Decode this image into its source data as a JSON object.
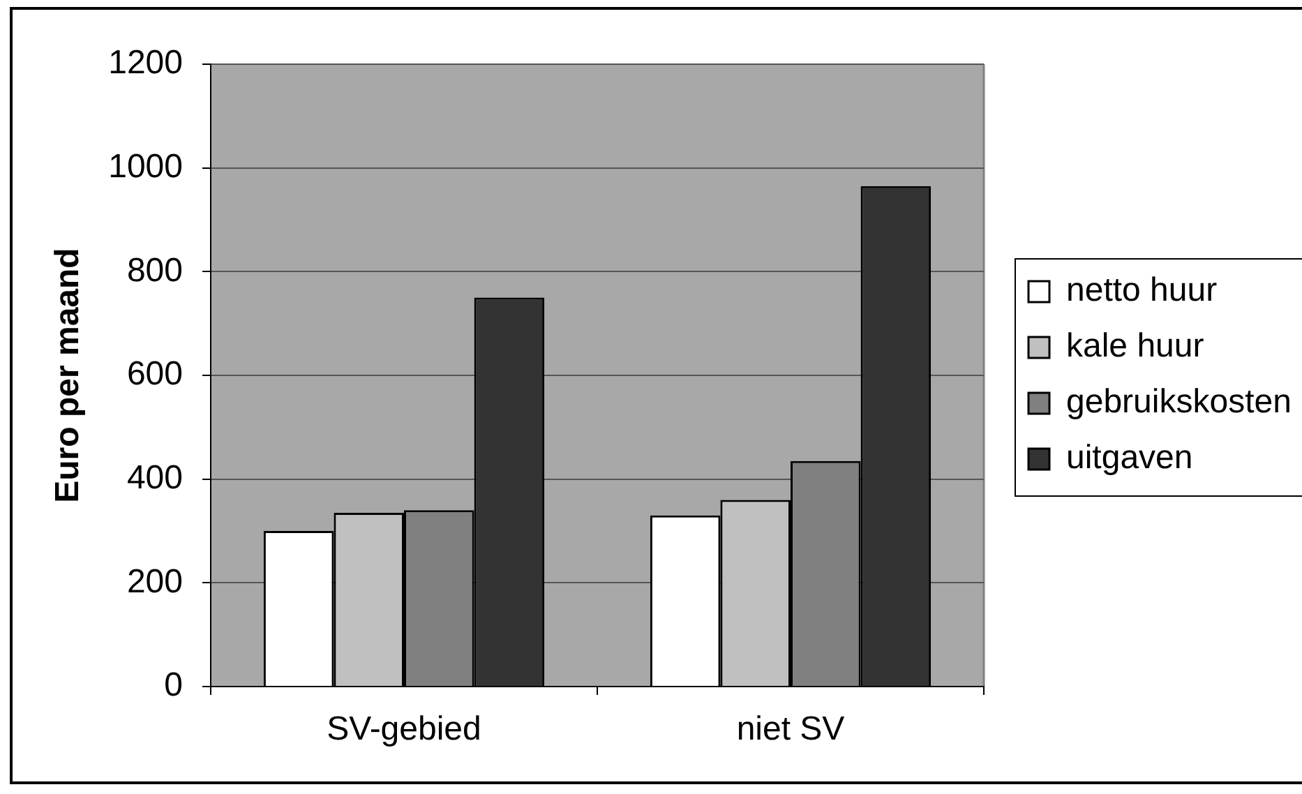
{
  "chart_data": {
    "type": "bar",
    "ylabel": "Euro per maand",
    "categories": [
      "SV-gebied",
      "niet SV"
    ],
    "series": [
      {
        "name": "netto huur",
        "color": "#ffffff",
        "values": [
          300,
          330
        ]
      },
      {
        "name": "kale huur",
        "color": "#c0c0c0",
        "values": [
          335,
          360
        ]
      },
      {
        "name": "gebruikskosten",
        "color": "#808080",
        "values": [
          340,
          435
        ]
      },
      {
        "name": "uitgaven",
        "color": "#333333",
        "values": [
          750,
          965
        ]
      }
    ],
    "ylim": [
      0,
      1200
    ],
    "yticks": [
      0,
      200,
      400,
      600,
      800,
      1000,
      1200
    ],
    "grid": "y",
    "legend": "right"
  }
}
